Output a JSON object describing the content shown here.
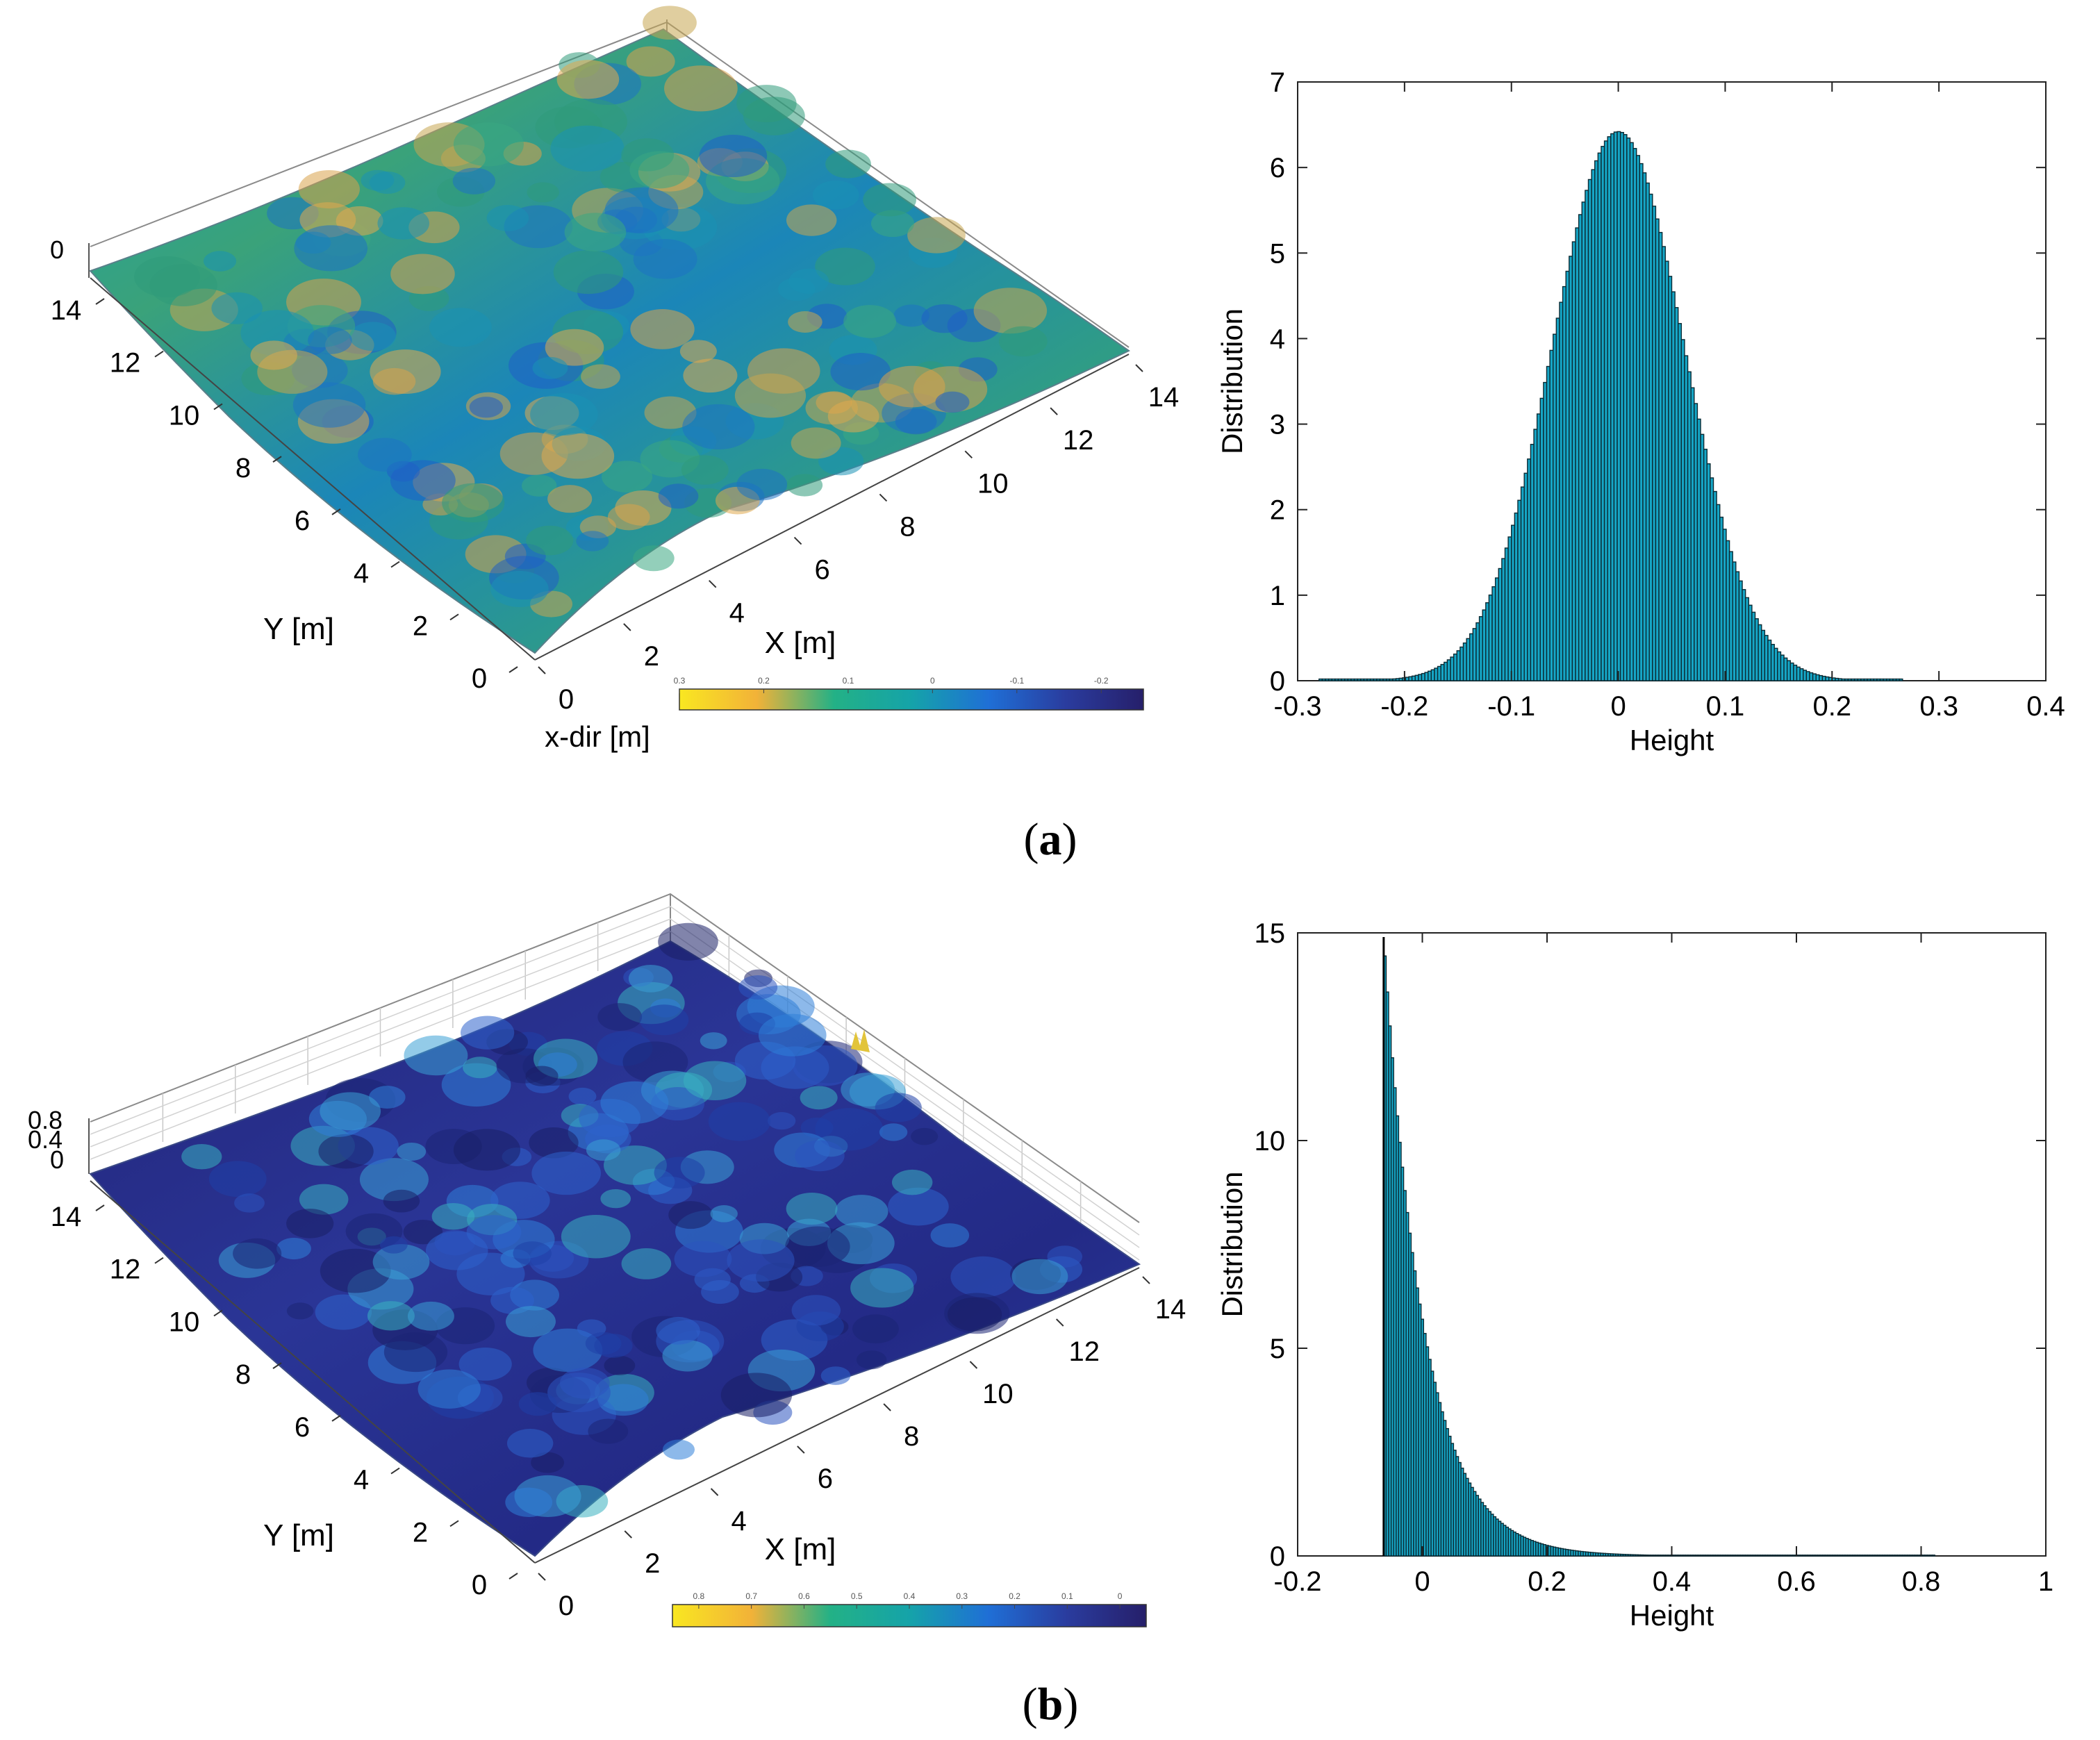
{
  "panel_labels": {
    "a_letter": "a",
    "b_letter": "b",
    "open": "(",
    "close": ")"
  },
  "colormap": [
    "#f9e721",
    "#f2b238",
    "#23b186",
    "#15a3a9",
    "#1f6fd6",
    "#2a3c9e",
    "#261f6a"
  ],
  "chart_data": [
    {
      "id": "a-surface",
      "type": "surface3d",
      "title": "",
      "xlabel": "X [m]",
      "ylabel": "Y [m]",
      "extra_label": "x-dir [m]",
      "x_ticks": [
        "0",
        "2",
        "4",
        "6",
        "8",
        "10",
        "12",
        "14"
      ],
      "y_ticks": [
        "0",
        "2",
        "4",
        "6",
        "8",
        "10",
        "12",
        "14"
      ],
      "z_ticks": [
        "0"
      ],
      "xlim": [
        0,
        14
      ],
      "ylim": [
        0,
        14
      ],
      "colorbar_ticks": [
        "0.3",
        "0.2",
        "0.1",
        "0",
        "-0.1",
        "-0.2"
      ],
      "colorbar_range": [
        0.3,
        -0.25
      ]
    },
    {
      "id": "a-hist",
      "type": "bar",
      "title": "",
      "xlabel": "Height",
      "ylabel": "Distribution",
      "xlim": [
        -0.3,
        0.4
      ],
      "ylim": [
        0,
        7
      ],
      "x_ticks": [
        "-0.3",
        "-0.2",
        "-0.1",
        "0",
        "0.1",
        "0.2",
        "0.3",
        "0.4"
      ],
      "y_ticks": [
        "0",
        "1",
        "2",
        "3",
        "4",
        "5",
        "6",
        "7"
      ],
      "distribution": {
        "kind": "gaussian",
        "mean": 0,
        "sd": 0.062,
        "peak": 6.42,
        "bin_width": 0.003,
        "support": [
          -0.28,
          0.265
        ]
      },
      "bar_color": "#16a6c6"
    },
    {
      "id": "b-surface",
      "type": "surface3d",
      "title": "",
      "xlabel": "X [m]",
      "ylabel": "Y [m]",
      "x_ticks": [
        "0",
        "2",
        "4",
        "6",
        "8",
        "10",
        "12",
        "14"
      ],
      "y_ticks": [
        "0",
        "2",
        "4",
        "6",
        "8",
        "10",
        "12",
        "14"
      ],
      "z_ticks": [
        "0",
        "0.4",
        "0.8"
      ],
      "xlim": [
        0,
        14
      ],
      "ylim": [
        0,
        14
      ],
      "colorbar_ticks": [
        "0.8",
        "0.7",
        "0.6",
        "0.5",
        "0.4",
        "0.3",
        "0.2",
        "0.1",
        "0"
      ],
      "colorbar_range": [
        0.85,
        -0.05
      ]
    },
    {
      "id": "b-hist",
      "type": "bar",
      "title": "",
      "xlabel": "Height",
      "ylabel": "Distribution",
      "xlim": [
        -0.2,
        1
      ],
      "ylim": [
        0,
        15
      ],
      "x_ticks": [
        "-0.2",
        "0",
        "0.2",
        "0.4",
        "0.6",
        "0.8",
        "1"
      ],
      "y_ticks": [
        "0",
        "5",
        "10",
        "15"
      ],
      "distribution": {
        "kind": "exponential",
        "start": -0.062,
        "peak": 14.9,
        "rate": 15.5,
        "bin_width": 0.004,
        "support": [
          -0.062,
          0.82
        ]
      },
      "bar_color": "#16a6c6"
    }
  ]
}
